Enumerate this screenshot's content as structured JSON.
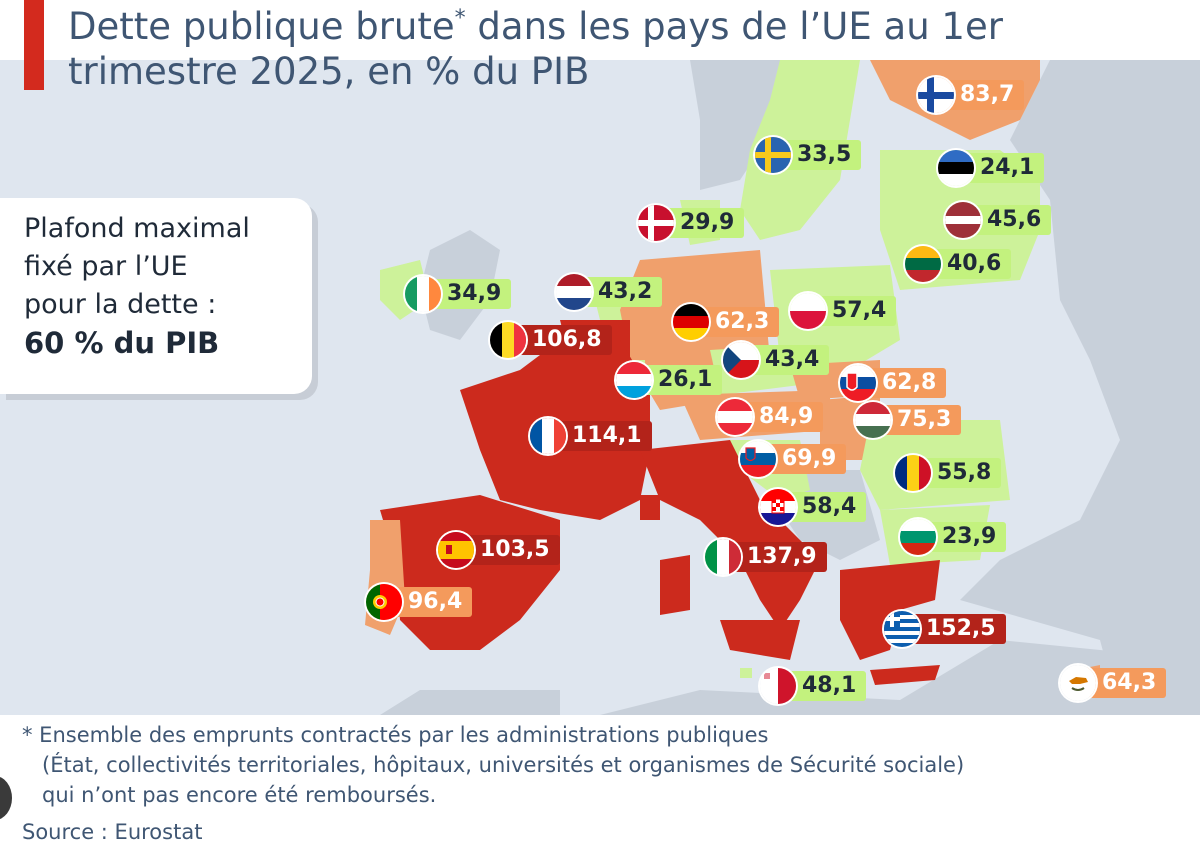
{
  "title": "Dette publique brute",
  "title_asterisk": "*",
  "title_rest": " dans les pays de l’UE au 1er trimestre 2025, en % du PIB",
  "callout": {
    "line1": "Plafond maximal",
    "line2": "fixé par l’UE",
    "line3": "pour la dette :",
    "line4": "60 % du PIB"
  },
  "countries": [
    {
      "id": "finland",
      "value": "83,7",
      "level": "orange"
    },
    {
      "id": "sweden",
      "value": "33,5",
      "level": "green"
    },
    {
      "id": "estonia",
      "value": "24,1",
      "level": "green"
    },
    {
      "id": "denmark",
      "value": "29,9",
      "level": "green"
    },
    {
      "id": "latvia",
      "value": "45,6",
      "level": "green"
    },
    {
      "id": "lithuania",
      "value": "40,6",
      "level": "green"
    },
    {
      "id": "ireland",
      "value": "34,9",
      "level": "green"
    },
    {
      "id": "netherlands",
      "value": "43,2",
      "level": "green"
    },
    {
      "id": "germany",
      "value": "62,3",
      "level": "orange"
    },
    {
      "id": "poland",
      "value": "57,4",
      "level": "green"
    },
    {
      "id": "belgium",
      "value": "106,8",
      "level": "red"
    },
    {
      "id": "czechia",
      "value": "43,4",
      "level": "green"
    },
    {
      "id": "slovakia",
      "value": "62,8",
      "level": "orange"
    },
    {
      "id": "luxembourg",
      "value": "26,1",
      "level": "green"
    },
    {
      "id": "austria",
      "value": "84,9",
      "level": "orange"
    },
    {
      "id": "hungary",
      "value": "75,3",
      "level": "orange"
    },
    {
      "id": "france",
      "value": "114,1",
      "level": "red"
    },
    {
      "id": "slovenia",
      "value": "69,9",
      "level": "orange"
    },
    {
      "id": "romania",
      "value": "55,8",
      "level": "green"
    },
    {
      "id": "croatia",
      "value": "58,4",
      "level": "green"
    },
    {
      "id": "bulgaria",
      "value": "23,9",
      "level": "green"
    },
    {
      "id": "spain",
      "value": "103,5",
      "level": "red"
    },
    {
      "id": "italy",
      "value": "137,9",
      "level": "red"
    },
    {
      "id": "portugal",
      "value": "96,4",
      "level": "orange"
    },
    {
      "id": "greece",
      "value": "152,5",
      "level": "red"
    },
    {
      "id": "malta",
      "value": "48,1",
      "level": "green"
    },
    {
      "id": "cyprus",
      "value": "64,3",
      "level": "orange"
    }
  ],
  "colors": {
    "green_below_60": "#c3f27e",
    "orange_60_to_100": "#f49a5c",
    "red_above_100": "#b3231a",
    "map_red": "#cc2a1d",
    "map_orange": "#f0a06c",
    "map_green": "#cdf29a",
    "land_grey": "#c8d0da",
    "sea": "#dfe6ef",
    "title_color": "#3f5673"
  },
  "footnote": {
    "line1": "* Ensemble des emprunts contractés par les administrations publiques",
    "line2": "(État, collectivités territoriales, hôpitaux, universités et organismes de Sécurité sociale)",
    "line3": "qui n’ont pas encore été remboursés."
  },
  "source": "Source : Eurostat"
}
